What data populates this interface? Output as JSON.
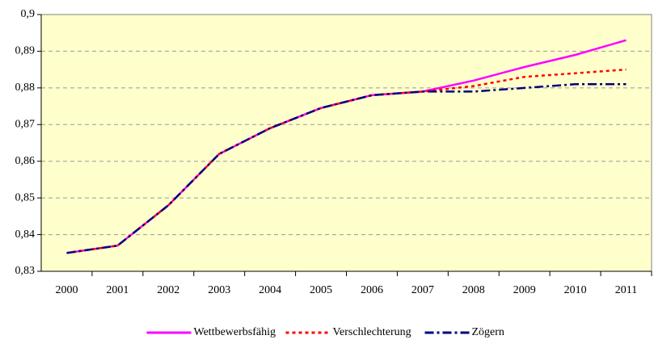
{
  "chart_data": {
    "type": "line",
    "categories": [
      "2000",
      "2001",
      "2002",
      "2003",
      "2004",
      "2005",
      "2006",
      "2007",
      "2008",
      "2009",
      "2010",
      "2011"
    ],
    "series": [
      {
        "name": "Wettbewerbsfähig",
        "color": "#ff00ff",
        "style": "solid",
        "values": [
          0.835,
          0.837,
          0.848,
          0.862,
          0.869,
          0.8745,
          0.878,
          0.879,
          0.882,
          0.8857,
          0.889,
          0.893
        ]
      },
      {
        "name": "Verschlechterung",
        "color": "#ff0000",
        "style": "dotted",
        "values": [
          0.835,
          0.837,
          0.848,
          0.862,
          0.869,
          0.8745,
          0.878,
          0.879,
          0.8805,
          0.883,
          0.884,
          0.885
        ]
      },
      {
        "name": "Zögern",
        "color": "#000080",
        "style": "dashdot",
        "values": [
          0.835,
          0.837,
          0.848,
          0.862,
          0.869,
          0.8745,
          0.878,
          0.879,
          0.879,
          0.88,
          0.881,
          0.881
        ]
      }
    ],
    "ylim": [
      0.83,
      0.9
    ],
    "yticks": [
      {
        "value": 0.83,
        "label": "0,83"
      },
      {
        "value": 0.84,
        "label": "0,84"
      },
      {
        "value": 0.85,
        "label": "0,85"
      },
      {
        "value": 0.86,
        "label": "0,86"
      },
      {
        "value": 0.87,
        "label": "0,87"
      },
      {
        "value": 0.88,
        "label": "0,88"
      },
      {
        "value": 0.89,
        "label": "0,89"
      },
      {
        "value": 0.9,
        "label": "0,9"
      }
    ],
    "grid": true,
    "legend": "bottom",
    "background": "#ffffcc"
  }
}
